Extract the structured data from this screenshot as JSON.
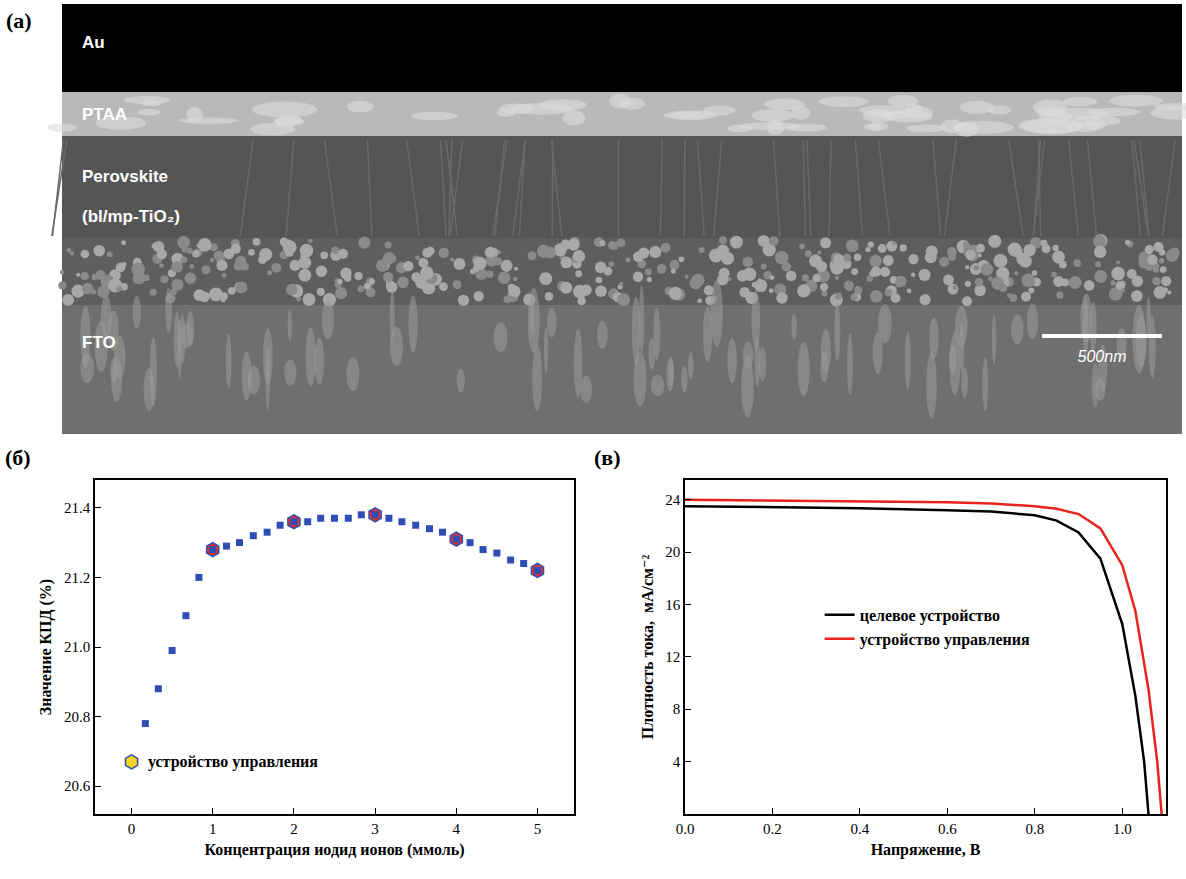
{
  "image_panel": {
    "label": "(a)",
    "layers": [
      "Au",
      "PTAA",
      "Perovskite",
      "(bl/mp-TiO₂)",
      "FTO"
    ],
    "scale_bar": "500nm"
  },
  "chart_data": [
    {
      "label": "(б)",
      "type": "scatter",
      "x_label": "Концентрация иодид ионов (ммоль)",
      "y_label": "Значение КПД (%)",
      "xlim": [
        -0.45,
        5.45
      ],
      "xticks": [
        0,
        1,
        2,
        3,
        4,
        5
      ],
      "ylim": [
        20.52,
        21.48
      ],
      "yticks": [
        20.6,
        20.8,
        {
          "value": 21,
          "label": "21.0"
        },
        21.2,
        21.4
      ],
      "series": [
        {
          "color": "#e0322b",
          "marker": "hexagon",
          "x": [
            1,
            2,
            3,
            4,
            5
          ],
          "values": [
            21.28,
            21.36,
            21.38,
            21.31,
            21.22
          ]
        },
        {
          "color": "#2f4eb5",
          "marker": "square",
          "x": [
            0.17,
            0.33,
            0.5,
            0.67,
            0.83,
            1,
            1.17,
            1.33,
            1.5,
            1.67,
            1.83,
            2,
            2.17,
            2.33,
            2.5,
            2.67,
            2.83,
            3,
            3.17,
            3.33,
            3.5,
            3.67,
            3.83,
            4,
            4.17,
            4.33,
            4.5,
            4.67,
            4.83,
            5
          ],
          "values": [
            20.78,
            20.88,
            20.99,
            21.09,
            21.2,
            21.28,
            21.29,
            21.3,
            21.32,
            21.33,
            21.35,
            21.36,
            21.36,
            21.37,
            21.37,
            21.37,
            21.38,
            21.38,
            21.37,
            21.36,
            21.35,
            21.34,
            21.33,
            21.31,
            21.3,
            21.28,
            21.27,
            21.25,
            21.24,
            21.22
          ]
        },
        {
          "name": "устройство управления",
          "color": "#f5d31e",
          "marker": "hexagon",
          "x": [
            0
          ],
          "values": [
            20.67
          ]
        }
      ]
    },
    {
      "label": "(в)",
      "type": "line",
      "legend": "center",
      "x_label": "Напряжение, В",
      "y_label": "Плотность тока,  мА/см⁻²",
      "xlim": [
        0,
        1.1
      ],
      "xticks": [
        {
          "value": 0,
          "label": "0.0"
        },
        0.2,
        0.4,
        0.6,
        0.8,
        {
          "value": 1,
          "label": "1.0"
        }
      ],
      "ylim": [
        0,
        25.5
      ],
      "yticks": [
        4,
        8,
        12,
        16,
        20,
        24
      ],
      "series": [
        {
          "name": "целевое устройство",
          "color": "#000000",
          "x": [
            0,
            0.2,
            0.4,
            0.6,
            0.7,
            0.8,
            0.85,
            0.9,
            0.95,
            1.0,
            1.03,
            1.05,
            1.06
          ],
          "values": [
            23.5,
            23.45,
            23.35,
            23.2,
            23.1,
            22.8,
            22.4,
            21.5,
            19.5,
            14.5,
            9,
            4,
            0
          ]
        },
        {
          "name": "устройство управления",
          "color": "#e8231c",
          "x": [
            0,
            0.2,
            0.4,
            0.6,
            0.7,
            0.8,
            0.85,
            0.9,
            0.95,
            1.0,
            1.03,
            1.06,
            1.08,
            1.09
          ],
          "values": [
            24.0,
            23.95,
            23.9,
            23.8,
            23.7,
            23.5,
            23.3,
            22.9,
            21.8,
            19.0,
            15.5,
            9.5,
            4,
            0
          ]
        }
      ]
    }
  ]
}
